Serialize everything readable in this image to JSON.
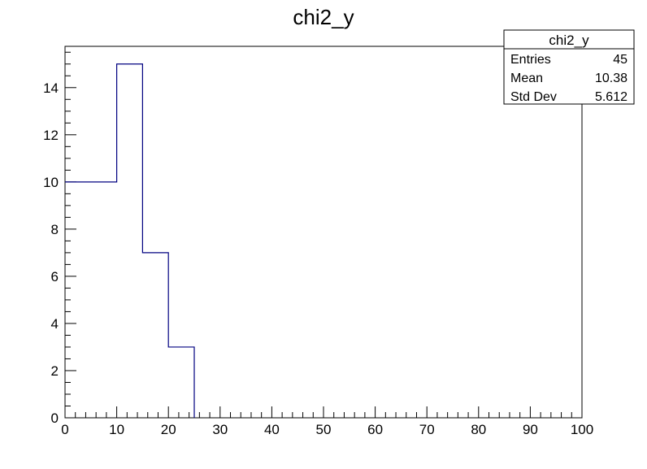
{
  "chart_data": {
    "type": "bar",
    "title": "chi2_y",
    "xlabel": "",
    "ylabel": "",
    "xlim": [
      0,
      100
    ],
    "ylim": [
      0,
      15.75
    ],
    "x_ticks": [
      0,
      10,
      20,
      30,
      40,
      50,
      60,
      70,
      80,
      90,
      100
    ],
    "y_ticks": [
      0,
      2,
      4,
      6,
      8,
      10,
      12,
      14
    ],
    "bins": [
      {
        "low": 0,
        "high": 5,
        "value": 10
      },
      {
        "low": 5,
        "high": 10,
        "value": 10
      },
      {
        "low": 10,
        "high": 15,
        "value": 15
      },
      {
        "low": 15,
        "high": 20,
        "value": 7
      },
      {
        "low": 20,
        "high": 25,
        "value": 3
      }
    ],
    "line_color": "#000080",
    "grid": false,
    "legend_position": "top-right"
  },
  "stats_box": {
    "title": "chi2_y",
    "rows": [
      {
        "label": "Entries",
        "value": "45"
      },
      {
        "label": "Mean",
        "value": "10.38"
      },
      {
        "label": "Std Dev",
        "value": "5.612"
      }
    ]
  }
}
